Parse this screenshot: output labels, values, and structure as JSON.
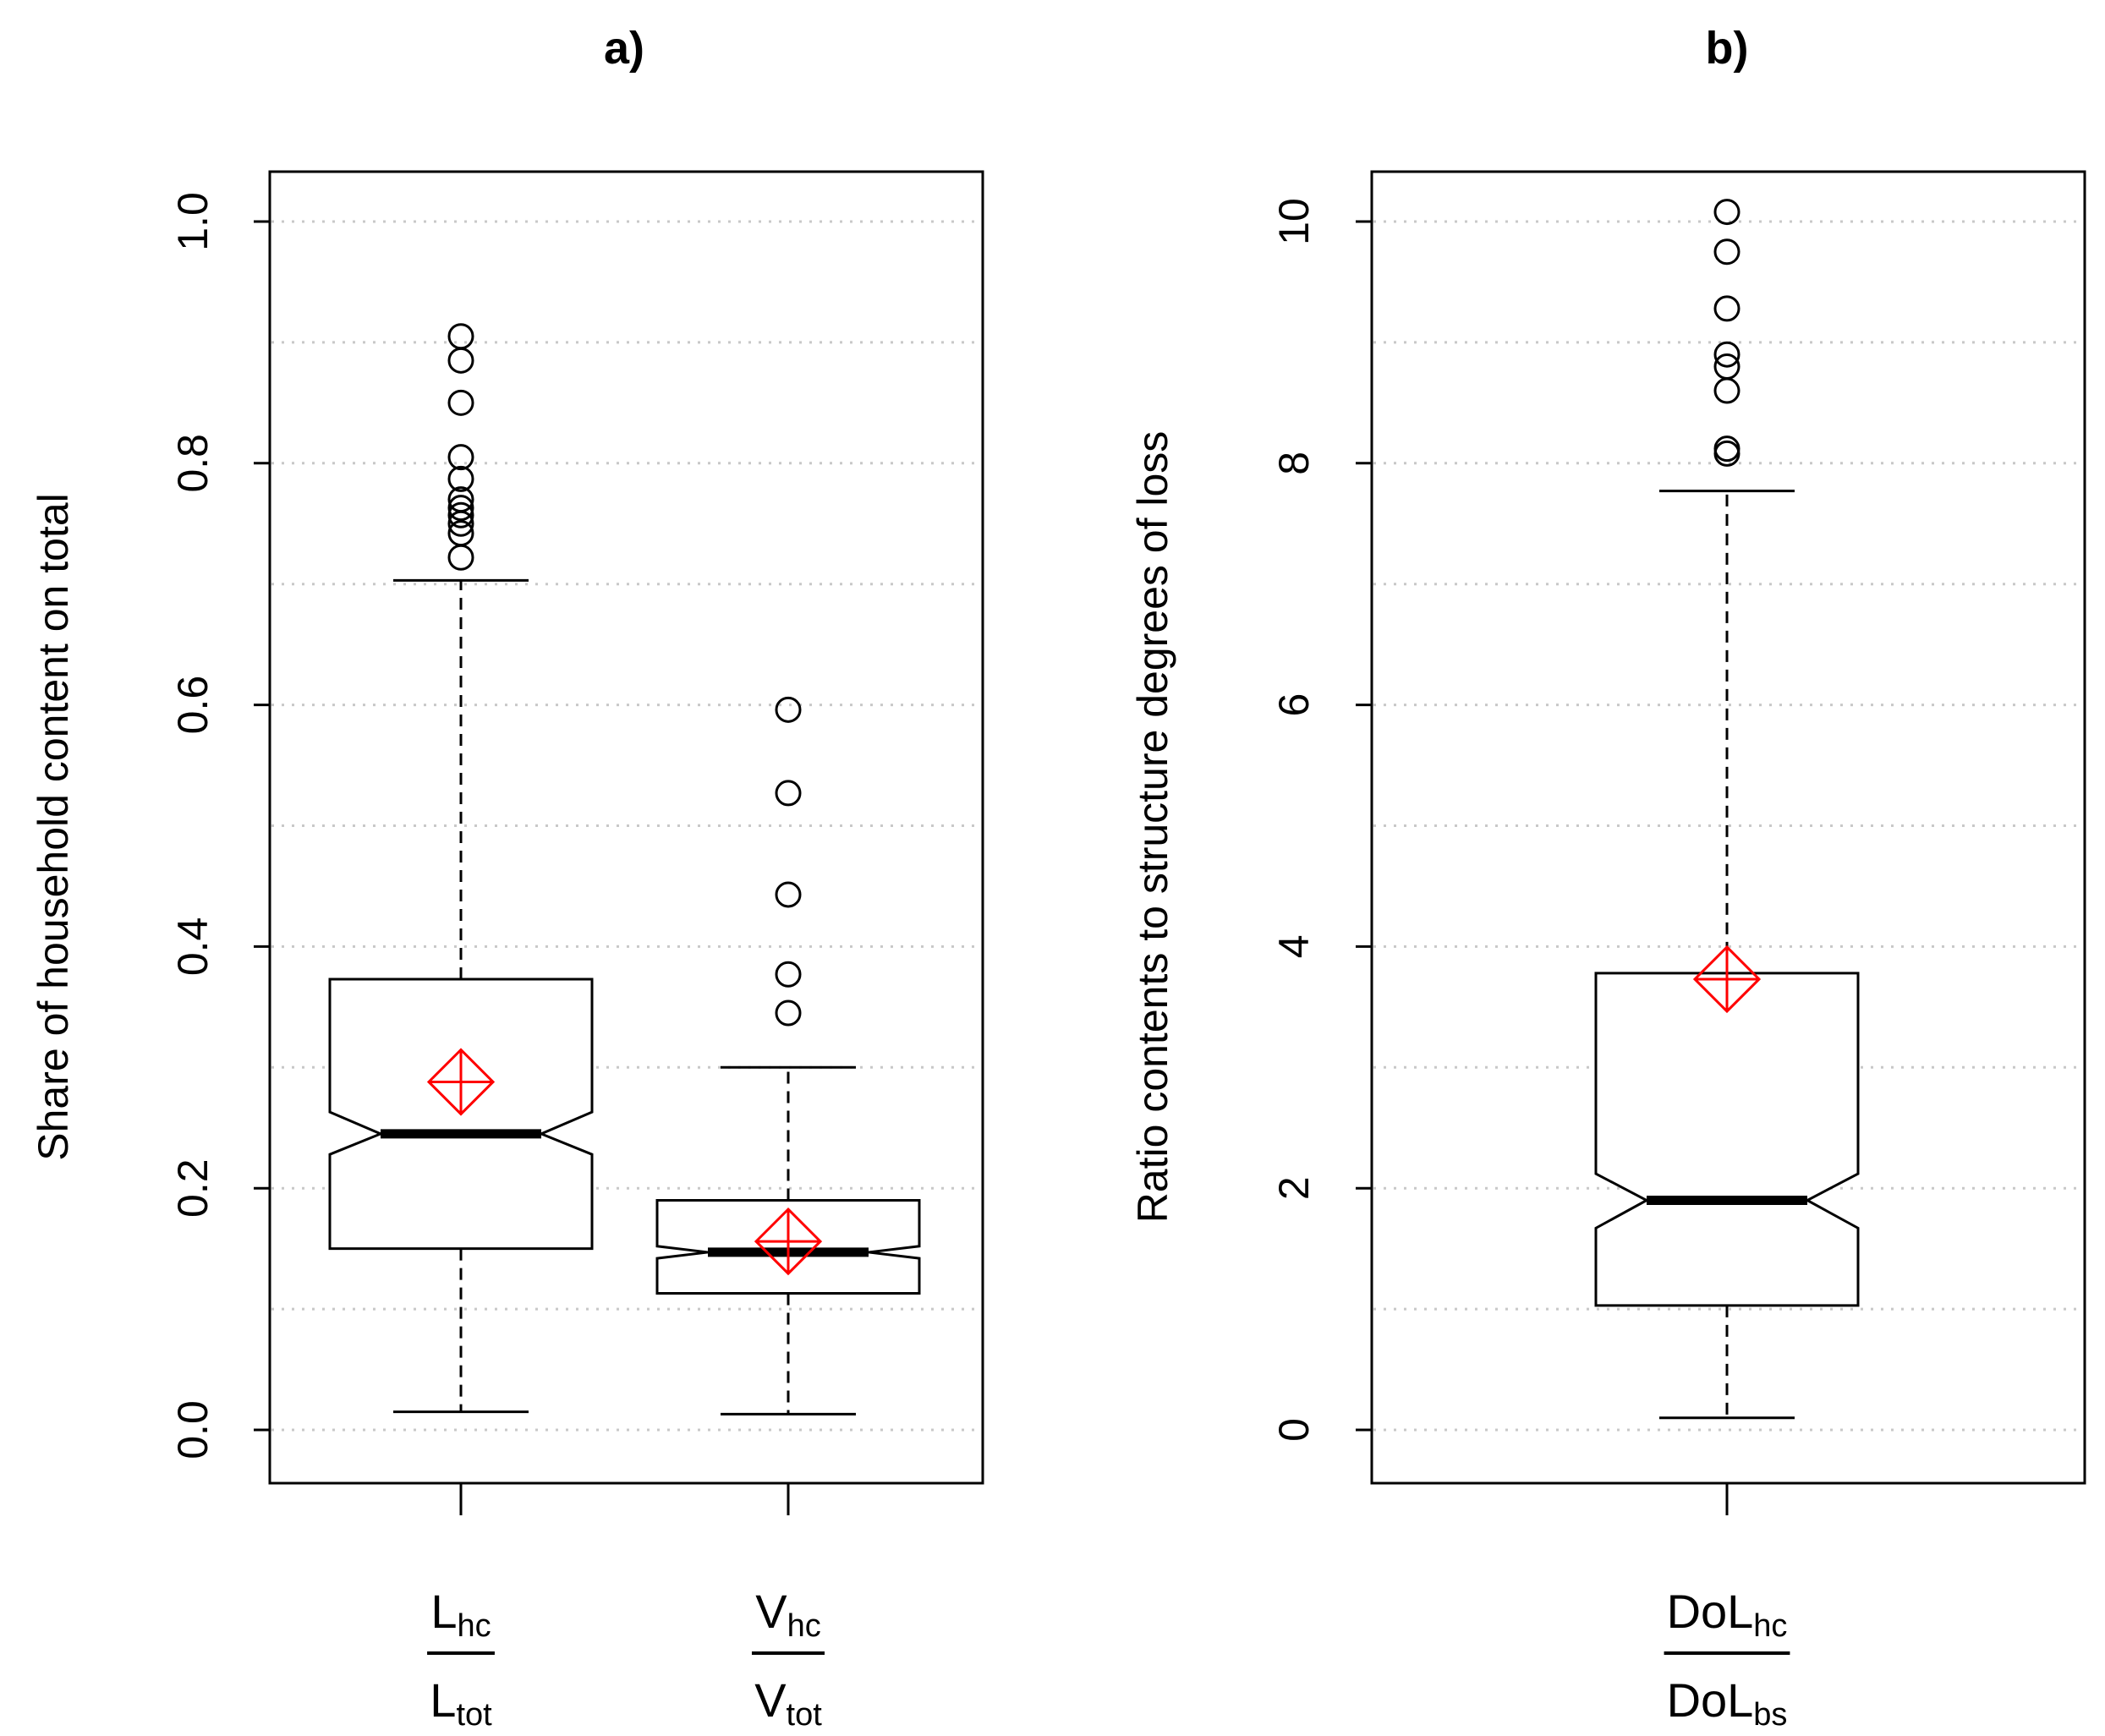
{
  "chart_data": [
    {
      "type": "boxplot",
      "panel_label": "a)",
      "ylabel": "Share of household content on total",
      "ylim": [
        -0.04,
        1.04
      ],
      "yticks": [
        0.0,
        0.2,
        0.4,
        0.6,
        0.8,
        1.0
      ],
      "ytick_labels": [
        "0.0",
        "0.2",
        "0.4",
        "0.6",
        "0.8",
        "1.0"
      ],
      "grid_lines": [
        0.0,
        0.1,
        0.2,
        0.3,
        0.4,
        0.5,
        0.6,
        0.7,
        0.8,
        0.9,
        1.0
      ],
      "notched": true,
      "mean_marker": "red diamond with cross",
      "categories": [
        {
          "numerator": {
            "base": "L",
            "sub": "hc"
          },
          "denominator": {
            "base": "L",
            "sub": "tot"
          },
          "whisker_low": 0.015,
          "q1": 0.15,
          "median": 0.245,
          "q3": 0.373,
          "whisker_high": 0.703,
          "notch_low": 0.228,
          "notch_high": 0.263,
          "mean": 0.288,
          "outliers": [
            0.722,
            0.742,
            0.75,
            0.757,
            0.763,
            0.77,
            0.787,
            0.805,
            0.85,
            0.885,
            0.905
          ]
        },
        {
          "numerator": {
            "base": "V",
            "sub": "hc"
          },
          "denominator": {
            "base": "V",
            "sub": "tot"
          },
          "whisker_low": 0.013,
          "q1": 0.113,
          "median": 0.147,
          "q3": 0.19,
          "whisker_high": 0.3,
          "notch_low": 0.142,
          "notch_high": 0.152,
          "mean": 0.156,
          "outliers": [
            0.345,
            0.377,
            0.443,
            0.527,
            0.596
          ]
        }
      ]
    },
    {
      "type": "boxplot",
      "panel_label": "b)",
      "ylabel": "Ratio contents to structure degrees of loss",
      "ylim": [
        -0.8,
        10.8
      ],
      "yticks": [
        0,
        2,
        4,
        6,
        8,
        10
      ],
      "ytick_labels": [
        "0",
        "2",
        "4",
        "6",
        "8",
        "10"
      ],
      "grid_lines": [
        0,
        1,
        2,
        3,
        4,
        5,
        6,
        7,
        8,
        9,
        10
      ],
      "notched": true,
      "mean_marker": "red diamond with cross",
      "categories": [
        {
          "numerator": {
            "base": "DoL",
            "sub": "hc"
          },
          "denominator": {
            "base": "DoL",
            "sub": "bs"
          },
          "whisker_low": 0.1,
          "q1": 1.03,
          "median": 1.9,
          "q3": 3.78,
          "whisker_high": 7.77,
          "notch_low": 1.67,
          "notch_high": 2.12,
          "mean": 3.73,
          "outliers": [
            8.08,
            8.12,
            8.6,
            8.8,
            8.9,
            9.28,
            9.75,
            10.08
          ]
        }
      ]
    }
  ]
}
